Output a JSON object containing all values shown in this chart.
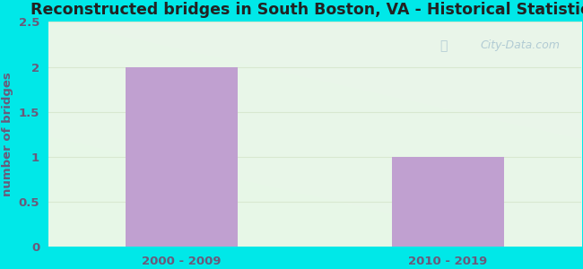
{
  "title": "Reconstructed bridges in South Boston, VA - Historical Statistics",
  "categories": [
    "2000 - 2009",
    "2010 - 2019"
  ],
  "values": [
    2,
    1
  ],
  "bar_color": "#c0a0d0",
  "ylabel": "number of bridges",
  "ylim": [
    0,
    2.5
  ],
  "yticks": [
    0,
    0.5,
    1,
    1.5,
    2,
    2.5
  ],
  "background_outer": "#00e8e8",
  "background_top_color": "#eaf5ea",
  "background_bottom_color": "#f8fff0",
  "title_color": "#222222",
  "label_color": "#6a5a7a",
  "grid_color": "#d8e8d0",
  "watermark_text": "City-Data.com",
  "title_fontsize": 12.5,
  "label_fontsize": 9.5,
  "tick_fontsize": 9.5
}
